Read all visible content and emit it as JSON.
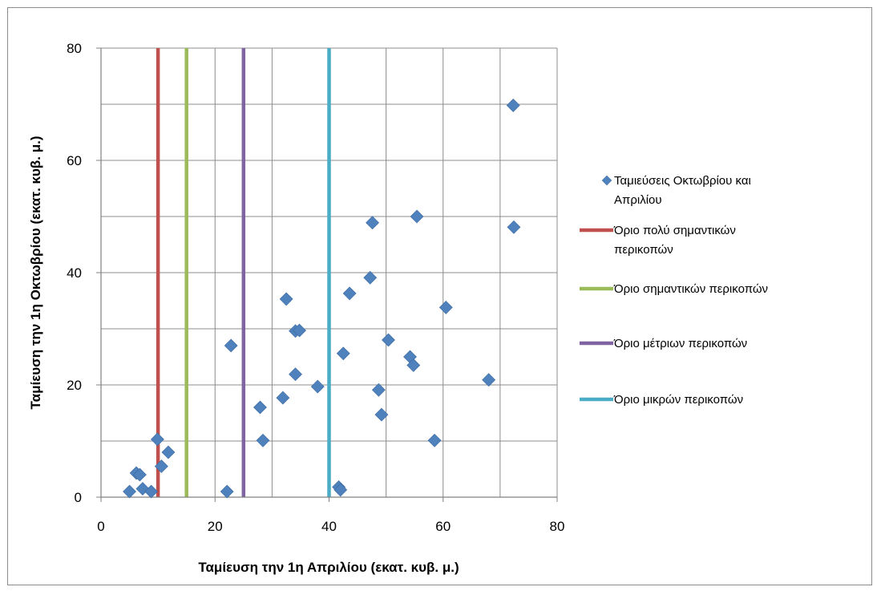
{
  "chart_data": {
    "type": "scatter",
    "xlabel": "Ταμίευση την 1η Απριλίου (εκατ. κυβ. μ.)",
    "ylabel": "Ταμίευση την 1η Οκτωβρίου (εκατ. κυβ. μ.)",
    "xlim": [
      0,
      80
    ],
    "ylim": [
      0,
      80
    ],
    "xticks": [
      0,
      20,
      40,
      60,
      80
    ],
    "yticks": [
      0,
      20,
      40,
      60,
      80
    ],
    "grid": true,
    "legend_position": "right",
    "series": [
      {
        "name": "Ταμιεύσεις Οκτωβρίου και Απριλίου",
        "legend_lines": [
          "Ταμιεύσεις Οκτωβρίου και",
          "Απριλίου"
        ],
        "kind": "scatter",
        "color": "#4f81bd",
        "points": [
          [
            5.0,
            1.0
          ],
          [
            6.2,
            4.3
          ],
          [
            6.8,
            4.0
          ],
          [
            7.3,
            1.5
          ],
          [
            8.8,
            1.0
          ],
          [
            9.9,
            10.3
          ],
          [
            10.6,
            5.5
          ],
          [
            11.8,
            8.0
          ],
          [
            22.1,
            1.0
          ],
          [
            22.8,
            27.0
          ],
          [
            27.9,
            16.0
          ],
          [
            28.4,
            10.1
          ],
          [
            31.9,
            17.7
          ],
          [
            32.5,
            35.3
          ],
          [
            34.1,
            29.6
          ],
          [
            34.1,
            21.9
          ],
          [
            34.8,
            29.7
          ],
          [
            38.0,
            19.7
          ],
          [
            41.7,
            1.8
          ],
          [
            42.0,
            1.3
          ],
          [
            42.5,
            25.6
          ],
          [
            43.6,
            36.3
          ],
          [
            47.2,
            39.1
          ],
          [
            47.6,
            48.9
          ],
          [
            48.7,
            19.1
          ],
          [
            49.2,
            14.7
          ],
          [
            50.4,
            28.0
          ],
          [
            54.2,
            25.0
          ],
          [
            54.8,
            23.5
          ],
          [
            55.4,
            50.0
          ],
          [
            58.5,
            10.1
          ],
          [
            60.5,
            33.8
          ],
          [
            68.0,
            20.9
          ],
          [
            72.3,
            69.8
          ],
          [
            72.4,
            48.1
          ]
        ]
      },
      {
        "name": "Όριο πολύ σημαντικών περικοπών",
        "legend_lines": [
          "Όριο πολύ σημαντικών",
          "περικοπών"
        ],
        "kind": "vline",
        "x": 10,
        "color": "#c0504d"
      },
      {
        "name": "Όριο σημαντικών περικοπών",
        "legend_lines": [
          "Όριο σημαντικών περικοπών"
        ],
        "kind": "vline",
        "x": 15,
        "color": "#9bbb59"
      },
      {
        "name": "Όριο μέτριων περικοπών",
        "legend_lines": [
          "Όριο μέτριων περικοπών"
        ],
        "kind": "vline",
        "x": 25,
        "color": "#8064a2"
      },
      {
        "name": "Όριο μικρών περικοπών",
        "legend_lines": [
          "Όριο μικρών περικοπών"
        ],
        "kind": "vline",
        "x": 40,
        "color": "#4bacc6"
      }
    ]
  }
}
